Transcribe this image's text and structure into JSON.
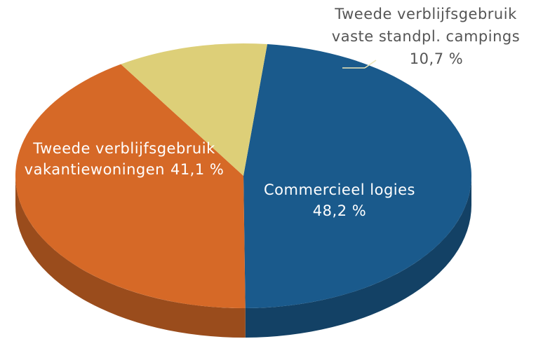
{
  "chart_data": {
    "type": "pie",
    "categories": [
      [
        "Commercieel logies"
      ],
      [
        "Tweede verblijfsgebruik",
        "vakantiewoningen"
      ],
      [
        "Tweede verblijfsgebruik",
        "vaste standpl. campings"
      ]
    ],
    "values": [
      48.2,
      41.1,
      10.7
    ],
    "value_labels": [
      "48,2 %",
      "41,1 %",
      "10,7 %"
    ],
    "colors": [
      "#1a5a8c",
      "#d66927",
      "#ddcf78"
    ]
  }
}
